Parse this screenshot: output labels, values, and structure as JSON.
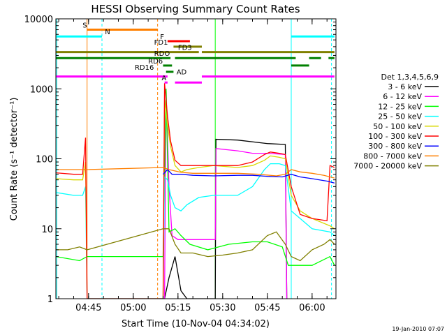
{
  "chart_data": {
    "type": "line",
    "title": "HESSI Observing Summary Count Rates",
    "xlabel": "Start Time (10-Nov-04 04:34:02)",
    "ylabel": "Count Rate (s⁻¹ detector⁻¹)",
    "y_scale": "log",
    "ylim": [
      1,
      10000
    ],
    "y_ticks": [
      {
        "v": 1,
        "label": "1"
      },
      {
        "v": 10,
        "label": "10"
      },
      {
        "v": 100,
        "label": "100"
      },
      {
        "v": 1000,
        "label": "1000"
      },
      {
        "v": 10000,
        "label": "10000"
      }
    ],
    "xlim": [
      "04:34:02",
      "06:08:00"
    ],
    "x_ticks": [
      {
        "t": "04:45",
        "label": "04:45"
      },
      {
        "t": "05:00",
        "label": "05:00"
      },
      {
        "t": "05:15",
        "label": "05:15"
      },
      {
        "t": "05:30",
        "label": "05:30"
      },
      {
        "t": "05:45",
        "label": "05:45"
      },
      {
        "t": "06:00",
        "label": "06:00"
      }
    ],
    "legend_title": "Det 1,3,4,5,6,9",
    "legend_position": "right",
    "grid": false,
    "series": [
      {
        "name": "3 - 6 keV",
        "color": "#000000",
        "points": [
          [
            "05:10:30",
            1
          ],
          [
            "05:12:00",
            2
          ],
          [
            "05:14:00",
            4
          ],
          [
            "05:16:00",
            1.3
          ],
          [
            "05:18:00",
            1
          ],
          [
            "05:27:30",
            1
          ],
          [
            "05:27:45",
            190
          ],
          [
            "05:35:00",
            185
          ],
          [
            "05:45:00",
            165
          ],
          [
            "05:51:00",
            160
          ],
          [
            "05:51:30",
            1
          ]
        ]
      },
      {
        "name": "6 - 12 keV",
        "color": "#ff00ff",
        "points": [
          [
            "04:44:30",
            1
          ],
          [
            "05:10:30",
            1
          ],
          [
            "05:11:00",
            1000
          ],
          [
            "05:12:00",
            40
          ],
          [
            "05:13:00",
            8
          ],
          [
            "05:15:00",
            7
          ],
          [
            "05:20:00",
            7
          ],
          [
            "05:27:30",
            7
          ],
          [
            "05:27:45",
            140
          ],
          [
            "05:35:00",
            130
          ],
          [
            "05:40:00",
            120
          ],
          [
            "05:45:00",
            120
          ],
          [
            "05:51:00",
            115
          ],
          [
            "05:51:30",
            1
          ]
        ]
      },
      {
        "name": "12 - 25 keV",
        "color": "#00ff00",
        "points": [
          [
            "04:34:00",
            4
          ],
          [
            "04:42:00",
            3.5
          ],
          [
            "04:44:30",
            4
          ],
          [
            "05:10:00",
            4
          ],
          [
            "05:11:00",
            1000
          ],
          [
            "05:12:00",
            9
          ],
          [
            "05:14:00",
            10
          ],
          [
            "05:16:00",
            8
          ],
          [
            "05:19:00",
            6
          ],
          [
            "05:25:00",
            5
          ],
          [
            "05:32:00",
            6
          ],
          [
            "05:40:00",
            6.5
          ],
          [
            "05:45:00",
            6.5
          ],
          [
            "05:50:00",
            5.5
          ],
          [
            "05:52:00",
            3
          ],
          [
            "06:00:00",
            3
          ],
          [
            "06:06:00",
            4
          ],
          [
            "06:07:30",
            3
          ]
        ]
      },
      {
        "name": "25 - 50 keV",
        "color": "#00ffff",
        "points": [
          [
            "04:34:00",
            33
          ],
          [
            "04:40:00",
            30
          ],
          [
            "04:43:00",
            30
          ],
          [
            "04:44:00",
            40
          ],
          [
            "04:44:30",
            1
          ],
          [
            "05:10:00",
            1
          ],
          [
            "05:10:30",
            55
          ],
          [
            "05:11:30",
            50
          ],
          [
            "05:12:30",
            30
          ],
          [
            "05:14:00",
            20
          ],
          [
            "05:16:00",
            18
          ],
          [
            "05:18:00",
            22
          ],
          [
            "05:22:00",
            28
          ],
          [
            "05:27:00",
            30
          ],
          [
            "05:35:00",
            30
          ],
          [
            "05:40:00",
            40
          ],
          [
            "05:44:00",
            70
          ],
          [
            "05:46:00",
            85
          ],
          [
            "05:49:00",
            85
          ],
          [
            "05:51:00",
            80
          ],
          [
            "05:53:00",
            18
          ],
          [
            "05:56:00",
            14
          ],
          [
            "06:00:00",
            10
          ],
          [
            "06:06:00",
            9
          ],
          [
            "06:07:30",
            8
          ]
        ]
      },
      {
        "name": "50 - 100 keV",
        "color": "#d8d800",
        "points": [
          [
            "04:34:00",
            52
          ],
          [
            "04:40:00",
            50
          ],
          [
            "04:43:00",
            50
          ],
          [
            "04:44:00",
            90
          ],
          [
            "04:44:30",
            1
          ],
          [
            "05:10:00",
            1
          ],
          [
            "05:10:30",
            700
          ],
          [
            "05:11:30",
            300
          ],
          [
            "05:12:30",
            150
          ],
          [
            "05:14:00",
            80
          ],
          [
            "05:16:00",
            65
          ],
          [
            "05:18:00",
            70
          ],
          [
            "05:22:00",
            75
          ],
          [
            "05:27:00",
            80
          ],
          [
            "05:35:00",
            75
          ],
          [
            "05:40:00",
            80
          ],
          [
            "05:44:00",
            95
          ],
          [
            "05:46:00",
            110
          ],
          [
            "05:49:00",
            105
          ],
          [
            "05:51:00",
            100
          ],
          [
            "05:53:00",
            30
          ],
          [
            "05:56:00",
            18
          ],
          [
            "06:00:00",
            14
          ],
          [
            "06:06:00",
            11
          ],
          [
            "06:07:30",
            10
          ]
        ]
      },
      {
        "name": "100 - 300 keV",
        "color": "#ff0000",
        "points": [
          [
            "04:34:00",
            63
          ],
          [
            "04:40:00",
            60
          ],
          [
            "04:43:00",
            60
          ],
          [
            "04:44:00",
            200
          ],
          [
            "04:44:30",
            1
          ],
          [
            "05:10:00",
            1
          ],
          [
            "05:10:30",
            1200
          ],
          [
            "05:11:30",
            400
          ],
          [
            "05:12:30",
            180
          ],
          [
            "05:14:00",
            95
          ],
          [
            "05:16:00",
            80
          ],
          [
            "05:18:00",
            80
          ],
          [
            "05:22:00",
            80
          ],
          [
            "05:27:00",
            80
          ],
          [
            "05:35:00",
            80
          ],
          [
            "05:40:00",
            90
          ],
          [
            "05:44:00",
            115
          ],
          [
            "05:46:00",
            125
          ],
          [
            "05:49:00",
            120
          ],
          [
            "05:51:00",
            115
          ],
          [
            "05:53:00",
            40
          ],
          [
            "05:56:00",
            16
          ],
          [
            "06:00:00",
            14
          ],
          [
            "06:05:00",
            13
          ],
          [
            "06:06:00",
            80
          ],
          [
            "06:07:30",
            75
          ]
        ]
      },
      {
        "name": "300 - 800 keV",
        "color": "#0000ff",
        "points": [
          [
            "05:10:00",
            60
          ],
          [
            "05:11:30",
            70
          ],
          [
            "05:13:00",
            60
          ],
          [
            "05:16:00",
            60
          ],
          [
            "05:20:00",
            58
          ],
          [
            "05:27:00",
            57
          ],
          [
            "05:35:00",
            58
          ],
          [
            "05:40:00",
            58
          ],
          [
            "05:45:00",
            56
          ],
          [
            "05:50:00",
            55
          ],
          [
            "05:53:00",
            60
          ],
          [
            "05:56:00",
            55
          ],
          [
            "06:00:00",
            52
          ],
          [
            "06:05:00",
            48
          ],
          [
            "06:07:30",
            45
          ]
        ]
      },
      {
        "name": "800 - 7000 keV",
        "color": "#ff7f00",
        "points": [
          [
            "04:34:00",
            70
          ],
          [
            "04:44:30",
            70
          ],
          [
            "05:10:00",
            75
          ],
          [
            "05:12:00",
            70
          ],
          [
            "05:16:00",
            64
          ],
          [
            "05:20:00",
            62
          ],
          [
            "05:27:00",
            62
          ],
          [
            "05:35:00",
            62
          ],
          [
            "05:42:00",
            60
          ],
          [
            "05:48:00",
            57
          ],
          [
            "05:51:00",
            60
          ],
          [
            "05:53:00",
            70
          ],
          [
            "05:56:00",
            65
          ],
          [
            "06:00:00",
            62
          ],
          [
            "06:04:00",
            58
          ],
          [
            "06:07:30",
            53
          ]
        ]
      },
      {
        "name": "7000 - 20000 keV",
        "color": "#808000",
        "points": [
          [
            "04:34:00",
            5
          ],
          [
            "04:38:00",
            5
          ],
          [
            "04:42:00",
            5.5
          ],
          [
            "04:44:30",
            5
          ],
          [
            "05:10:00",
            10
          ],
          [
            "05:12:00",
            10
          ],
          [
            "05:14:00",
            6
          ],
          [
            "05:16:00",
            4.5
          ],
          [
            "05:20:00",
            4.5
          ],
          [
            "05:25:00",
            4
          ],
          [
            "05:30:00",
            4.2
          ],
          [
            "05:35:00",
            4.5
          ],
          [
            "05:40:00",
            5
          ],
          [
            "05:45:00",
            8
          ],
          [
            "05:48:00",
            9
          ],
          [
            "05:51:00",
            6
          ],
          [
            "05:53:00",
            4
          ],
          [
            "05:56:00",
            3.5
          ],
          [
            "06:00:00",
            5
          ],
          [
            "06:04:00",
            6
          ],
          [
            "06:06:00",
            7
          ],
          [
            "06:07:30",
            6
          ]
        ]
      }
    ],
    "vertical_markers": [
      {
        "t": "04:44:30",
        "color": "#ff7f00",
        "style": "solid"
      },
      {
        "t": "04:34:20",
        "color": "#00ffff",
        "style": "solid"
      },
      {
        "t": "04:49:30",
        "color": "#00ffff",
        "style": "dashed"
      },
      {
        "t": "05:08:10",
        "color": "#ff7f00",
        "style": "dashed"
      },
      {
        "t": "05:27:30",
        "color": "#00ff00",
        "style": "solid"
      },
      {
        "t": "05:53:00",
        "color": "#00ffff",
        "style": "solid"
      },
      {
        "t": "06:06:30",
        "color": "#00ffff",
        "style": "dashed"
      }
    ],
    "flag_bars": [
      {
        "label": "S",
        "color": "#ff7f00",
        "y": 7000,
        "segments": [
          [
            "04:44:30",
            "05:08:10"
          ]
        ]
      },
      {
        "label": "N",
        "color": "#00ffff",
        "y": 5600,
        "segments": [
          [
            "04:34:00",
            "04:49:30"
          ],
          [
            "05:53:00",
            "06:07:30"
          ]
        ]
      },
      {
        "label": "F",
        "color": "#ff0000",
        "y": 4800,
        "segments": [
          [
            "05:11:30",
            "05:19:00"
          ]
        ]
      },
      {
        "label": "FD1",
        "color": "#808000",
        "y": 4000,
        "segments": [
          [
            "05:13:30",
            "05:23:00"
          ]
        ]
      },
      {
        "label": "FD3",
        "color": "#808000",
        "y": 3350,
        "segments": [
          [
            "04:34:00",
            "05:22:00"
          ],
          [
            "05:23:00",
            "06:07:30"
          ]
        ]
      },
      {
        "label": "RDO",
        "color": "#008000",
        "y": 2750,
        "segments": [
          [
            "04:34:00",
            "05:12:30"
          ],
          [
            "05:14:00",
            "05:54:30"
          ],
          [
            "05:59:00",
            "06:03:00"
          ],
          [
            "06:05:30",
            "06:07:30"
          ]
        ]
      },
      {
        "label": "RD6",
        "color": "#008000",
        "y": 2150,
        "segments": [
          [
            "05:10:00",
            "05:13:00"
          ],
          [
            "05:53:00",
            "05:59:00"
          ]
        ]
      },
      {
        "label": "RD16",
        "color": "#008000",
        "y": 1750,
        "segments": [
          [
            "05:11:00",
            "05:13:30"
          ]
        ]
      },
      {
        "label": "AD",
        "color": "#ff00ff",
        "y": 1500,
        "segments": [
          [
            "04:34:00",
            "05:11:30"
          ],
          [
            "05:23:00",
            "06:07:30"
          ]
        ]
      },
      {
        "label": "A",
        "color": "#ff00ff",
        "y": 1230,
        "segments": [
          [
            "05:10:30",
            "05:11:30"
          ],
          [
            "05:14:00",
            "05:23:00"
          ]
        ]
      }
    ]
  },
  "timestamp": "19-Jan-2010 07:07"
}
